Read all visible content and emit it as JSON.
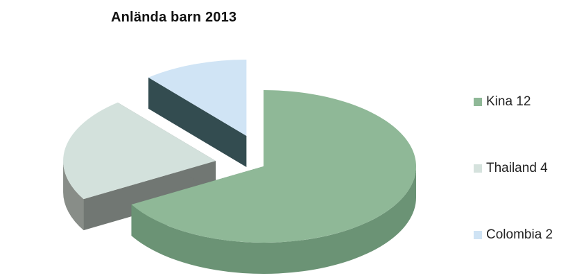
{
  "chart_data": {
    "type": "pie",
    "title": "Anlända barn 2013",
    "categories": [
      "Kina",
      "Thailand",
      "Colombia"
    ],
    "values": [
      12,
      4,
      2
    ],
    "legend": [
      {
        "label": "Kina 12",
        "color": "#8fb897"
      },
      {
        "label": "Thailand 4",
        "color": "#d5e2dd"
      },
      {
        "label": "Colombia 2",
        "color": "#cfe3f4"
      }
    ],
    "colors": {
      "top": [
        "#8fb897",
        "#d3e1dc",
        "#d0e4f5"
      ],
      "side": [
        "#6b9375",
        "#888d88",
        "#3d5a5e"
      ],
      "inner": [
        "#5f7e6a",
        "#717773",
        "#334c50"
      ]
    },
    "legend_position": "right",
    "style": "3d-exploded"
  }
}
